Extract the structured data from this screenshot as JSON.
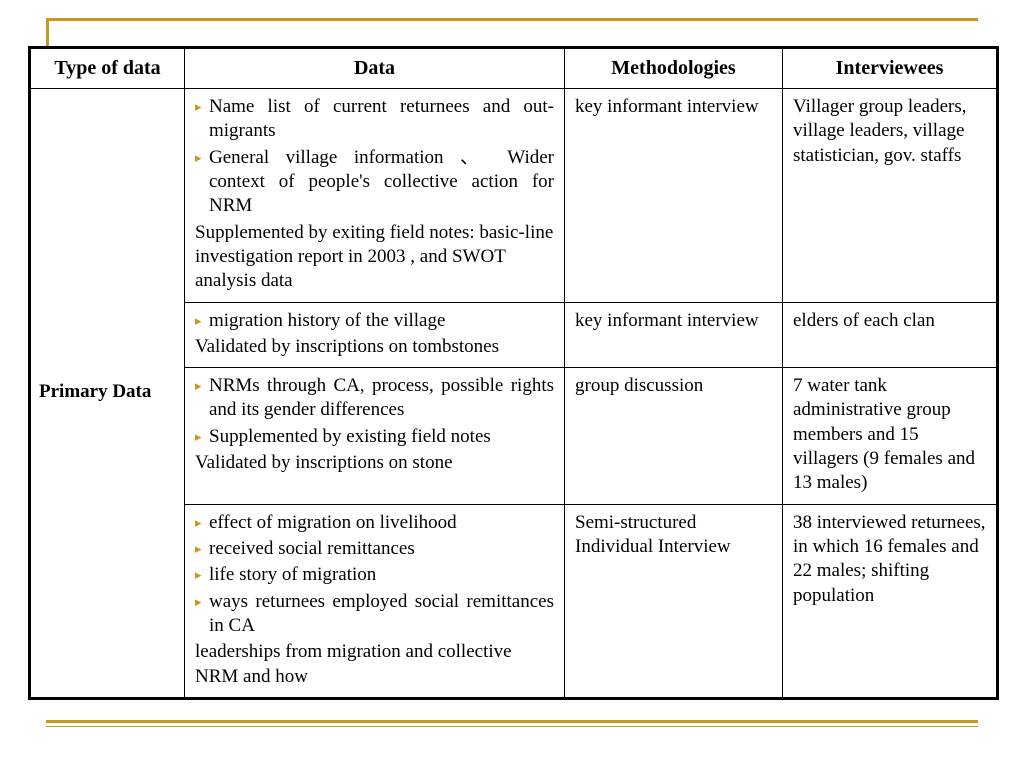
{
  "accent_color": "#c49a1a",
  "border_color": "#000000",
  "font_family": "Times New Roman",
  "headers": {
    "type": "Type of data",
    "data": "Data",
    "method": "Methodologies",
    "interviewees": "Interviewees"
  },
  "rowgroup_label": "Primary Data",
  "rows": [
    {
      "data_bullets": [
        "Name list of current returnees and out-migrants",
        "General village information 、 Wider context of people's collective action for NRM"
      ],
      "data_plain": "Supplemented by exiting field notes: basic-line investigation report in 2003 , and SWOT analysis data",
      "method": "key informant interview",
      "interviewees": "Villager group leaders, village leaders, village statistician, gov. staffs"
    },
    {
      "data_bullets": [
        "migration history of the village"
      ],
      "data_plain": "Validated by inscriptions on tombstones",
      "method": "key informant interview",
      "interviewees": "elders of each clan"
    },
    {
      "data_bullets": [
        "NRMs through CA, process, possible rights and its gender differences",
        "Supplemented by existing field notes"
      ],
      "data_plain": "Validated by inscriptions on stone",
      "method": "group discussion",
      "interviewees": "7 water tank administrative group members and 15 villagers (9 females and 13 males)"
    },
    {
      "data_bullets": [
        "effect of migration on livelihood",
        "received social remittances",
        "life story of migration",
        "ways returnees employed social remittances in CA"
      ],
      "data_plain": "leaderships from migration and collective NRM and how",
      "method": "Semi-structured Individual Interview",
      "interviewees": " 38 interviewed returnees, in which 16 females and 22 males; shifting population"
    }
  ]
}
